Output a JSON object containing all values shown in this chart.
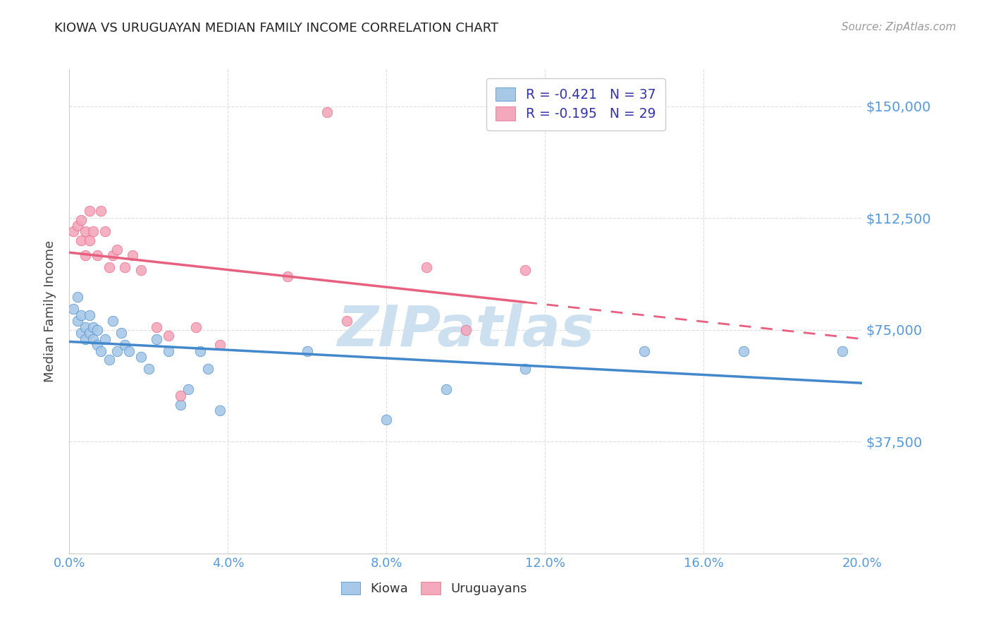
{
  "title": "KIOWA VS URUGUAYAN MEDIAN FAMILY INCOME CORRELATION CHART",
  "source": "Source: ZipAtlas.com",
  "ylabel": "Median Family Income",
  "ytick_labels": [
    "$37,500",
    "$75,000",
    "$112,500",
    "$150,000"
  ],
  "ytick_values": [
    37500,
    75000,
    112500,
    150000
  ],
  "ymin": 0,
  "ymax": 162500,
  "xmin": 0.0,
  "xmax": 0.2,
  "watermark": "ZIPatlas",
  "kiowa_color": "#a8c8e8",
  "uruguayan_color": "#f4a8bc",
  "kiowa_line_color": "#4488cc",
  "uruguayan_line_color": "#e86080",
  "kiowa_scatter_x": [
    0.001,
    0.002,
    0.002,
    0.003,
    0.003,
    0.004,
    0.004,
    0.005,
    0.005,
    0.006,
    0.006,
    0.007,
    0.007,
    0.008,
    0.009,
    0.01,
    0.011,
    0.012,
    0.013,
    0.014,
    0.015,
    0.018,
    0.02,
    0.022,
    0.025,
    0.028,
    0.03,
    0.033,
    0.035,
    0.038,
    0.06,
    0.08,
    0.095,
    0.115,
    0.145,
    0.17,
    0.195
  ],
  "kiowa_scatter_y": [
    82000,
    86000,
    78000,
    74000,
    80000,
    76000,
    72000,
    80000,
    74000,
    76000,
    72000,
    75000,
    70000,
    68000,
    72000,
    65000,
    78000,
    68000,
    74000,
    70000,
    68000,
    66000,
    62000,
    72000,
    68000,
    50000,
    55000,
    68000,
    62000,
    48000,
    68000,
    45000,
    55000,
    62000,
    68000,
    68000,
    68000
  ],
  "uruguayan_scatter_x": [
    0.001,
    0.002,
    0.003,
    0.003,
    0.004,
    0.004,
    0.005,
    0.005,
    0.006,
    0.007,
    0.008,
    0.009,
    0.01,
    0.011,
    0.012,
    0.014,
    0.016,
    0.018,
    0.022,
    0.025,
    0.028,
    0.032,
    0.038,
    0.055,
    0.07,
    0.09,
    0.1,
    0.115,
    0.065
  ],
  "uruguayan_scatter_y": [
    108000,
    110000,
    112000,
    105000,
    108000,
    100000,
    115000,
    105000,
    108000,
    100000,
    115000,
    108000,
    96000,
    100000,
    102000,
    96000,
    100000,
    95000,
    76000,
    73000,
    53000,
    76000,
    70000,
    93000,
    78000,
    96000,
    75000,
    95000,
    148000
  ],
  "kiowa_R": -0.421,
  "kiowa_N": 37,
  "uruguayan_R": -0.195,
  "uruguayan_N": 29,
  "grid_color": "#dddddd",
  "bg_color": "#ffffff",
  "title_color": "#222222",
  "axis_label_color": "#5599dd",
  "watermark_color": "#cce0f0",
  "legend_text_color": "#3333aa",
  "bottom_legend_color": "#333333",
  "source_color": "#999999"
}
